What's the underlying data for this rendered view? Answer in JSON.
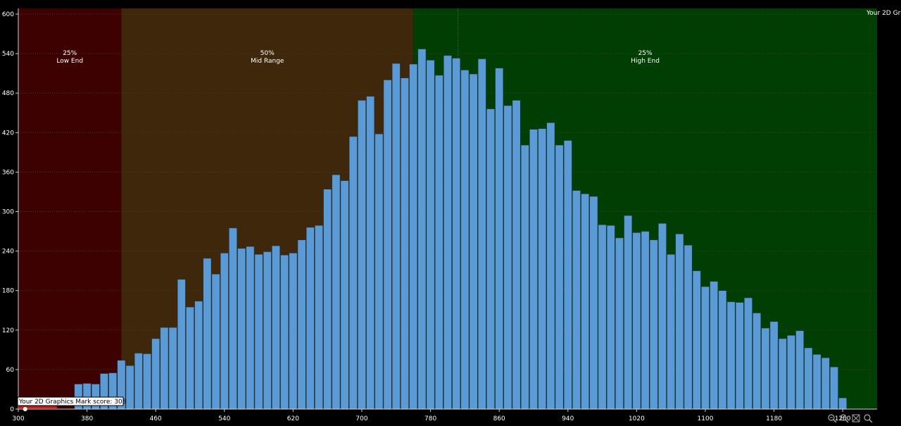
{
  "chart_data": {
    "type": "bar",
    "xlim": [
      300,
      1300
    ],
    "ylim": [
      0,
      610
    ],
    "x_ticks": [
      "300",
      "380",
      "460",
      "540",
      "620",
      "700",
      "780",
      "860",
      "940",
      "1020",
      "1100",
      "1180",
      "1260"
    ],
    "x_tick_values": [
      300,
      380,
      460,
      540,
      620,
      700,
      780,
      860,
      940,
      1020,
      1100,
      1180,
      1260
    ],
    "y_ticks": [
      "0",
      "60",
      "120",
      "180",
      "240",
      "300",
      "360",
      "420",
      "480",
      "540",
      "600"
    ],
    "y_tick_values": [
      0,
      60,
      120,
      180,
      240,
      300,
      360,
      420,
      480,
      540,
      600
    ],
    "grid": true,
    "bin_width": 10,
    "bins": [
      {
        "x": 370,
        "y": 38
      },
      {
        "x": 380,
        "y": 39
      },
      {
        "x": 390,
        "y": 38
      },
      {
        "x": 400,
        "y": 54
      },
      {
        "x": 410,
        "y": 55
      },
      {
        "x": 420,
        "y": 74
      },
      {
        "x": 430,
        "y": 66
      },
      {
        "x": 440,
        "y": 85
      },
      {
        "x": 450,
        "y": 84
      },
      {
        "x": 460,
        "y": 107
      },
      {
        "x": 470,
        "y": 124
      },
      {
        "x": 480,
        "y": 124
      },
      {
        "x": 490,
        "y": 197
      },
      {
        "x": 500,
        "y": 155
      },
      {
        "x": 510,
        "y": 164
      },
      {
        "x": 520,
        "y": 229
      },
      {
        "x": 530,
        "y": 205
      },
      {
        "x": 540,
        "y": 237
      },
      {
        "x": 550,
        "y": 275
      },
      {
        "x": 560,
        "y": 244
      },
      {
        "x": 570,
        "y": 247
      },
      {
        "x": 580,
        "y": 235
      },
      {
        "x": 590,
        "y": 239
      },
      {
        "x": 600,
        "y": 248
      },
      {
        "x": 610,
        "y": 234
      },
      {
        "x": 620,
        "y": 237
      },
      {
        "x": 630,
        "y": 257
      },
      {
        "x": 640,
        "y": 276
      },
      {
        "x": 650,
        "y": 279
      },
      {
        "x": 660,
        "y": 334
      },
      {
        "x": 670,
        "y": 356
      },
      {
        "x": 680,
        "y": 347
      },
      {
        "x": 690,
        "y": 414
      },
      {
        "x": 700,
        "y": 469
      },
      {
        "x": 710,
        "y": 475
      },
      {
        "x": 720,
        "y": 418
      },
      {
        "x": 730,
        "y": 500
      },
      {
        "x": 740,
        "y": 525
      },
      {
        "x": 750,
        "y": 503
      },
      {
        "x": 760,
        "y": 524
      },
      {
        "x": 770,
        "y": 547
      },
      {
        "x": 780,
        "y": 530
      },
      {
        "x": 790,
        "y": 507
      },
      {
        "x": 800,
        "y": 537
      },
      {
        "x": 810,
        "y": 533
      },
      {
        "x": 820,
        "y": 515
      },
      {
        "x": 830,
        "y": 509
      },
      {
        "x": 840,
        "y": 532
      },
      {
        "x": 850,
        "y": 456
      },
      {
        "x": 860,
        "y": 518
      },
      {
        "x": 870,
        "y": 461
      },
      {
        "x": 880,
        "y": 469
      },
      {
        "x": 890,
        "y": 401
      },
      {
        "x": 900,
        "y": 425
      },
      {
        "x": 910,
        "y": 426
      },
      {
        "x": 920,
        "y": 435
      },
      {
        "x": 930,
        "y": 401
      },
      {
        "x": 940,
        "y": 408
      },
      {
        "x": 950,
        "y": 332
      },
      {
        "x": 960,
        "y": 327
      },
      {
        "x": 970,
        "y": 323
      },
      {
        "x": 980,
        "y": 280
      },
      {
        "x": 990,
        "y": 279
      },
      {
        "x": 1000,
        "y": 260
      },
      {
        "x": 1010,
        "y": 294
      },
      {
        "x": 1020,
        "y": 268
      },
      {
        "x": 1030,
        "y": 270
      },
      {
        "x": 1040,
        "y": 257
      },
      {
        "x": 1050,
        "y": 282
      },
      {
        "x": 1060,
        "y": 235
      },
      {
        "x": 1070,
        "y": 266
      },
      {
        "x": 1080,
        "y": 249
      },
      {
        "x": 1090,
        "y": 210
      },
      {
        "x": 1100,
        "y": 186
      },
      {
        "x": 1110,
        "y": 194
      },
      {
        "x": 1120,
        "y": 180
      },
      {
        "x": 1130,
        "y": 163
      },
      {
        "x": 1140,
        "y": 162
      },
      {
        "x": 1150,
        "y": 169
      },
      {
        "x": 1160,
        "y": 146
      },
      {
        "x": 1170,
        "y": 123
      },
      {
        "x": 1180,
        "y": 133
      },
      {
        "x": 1190,
        "y": 107
      },
      {
        "x": 1200,
        "y": 112
      },
      {
        "x": 1210,
        "y": 119
      },
      {
        "x": 1220,
        "y": 93
      },
      {
        "x": 1230,
        "y": 83
      },
      {
        "x": 1240,
        "y": 78
      },
      {
        "x": 1250,
        "y": 64
      },
      {
        "x": 1260,
        "y": 17
      }
    ],
    "bands": [
      {
        "pct": "25%",
        "label": "Low End",
        "from": 300,
        "to": 420,
        "color": "#3d0101"
      },
      {
        "pct": "50%",
        "label": "Mid Range",
        "from": 420,
        "to": 760,
        "color": "#3f270b"
      },
      {
        "pct": "25%",
        "label": "High End",
        "from": 760,
        "to": 1300,
        "color": "#013e03"
      }
    ],
    "bar_color": "#5b9bd5",
    "bar_edge_color": "#1e3550",
    "score": {
      "label": "Your 2D Graphics Mark score: 308",
      "value": 308,
      "marker_color": "#e81010"
    },
    "reference_label": "Your 2D Gra",
    "reference_x": 812
  },
  "toolbar": {
    "icons": [
      "zoom-out-icon",
      "zoom-in-icon",
      "fit-to-window-icon",
      "zoom-reset-icon"
    ]
  }
}
